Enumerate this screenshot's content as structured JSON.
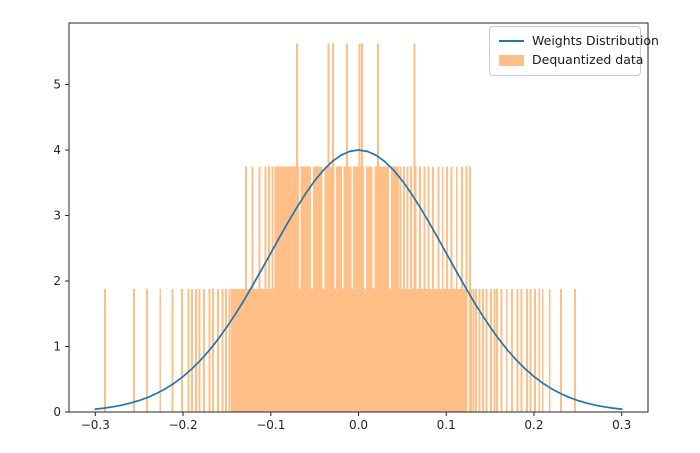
{
  "figure": {
    "background": "#ffffff"
  },
  "legend": {
    "entries": [
      {
        "type": "line",
        "label": "Weights Distribution",
        "color": "#1f77b4"
      },
      {
        "type": "patch",
        "label": "Dequantized data",
        "color": "#ffbf86"
      }
    ]
  },
  "chart_data": {
    "type": "histogram+line",
    "title": "",
    "xlabel": "",
    "ylabel": "",
    "grid": false,
    "legend_position": "upper right",
    "xlim": [
      -0.33,
      0.33
    ],
    "ylim": [
      0,
      5.94
    ],
    "x_ticks": {
      "values": [
        -0.3,
        -0.2,
        -0.1,
        0.0,
        0.1,
        0.2,
        0.3
      ],
      "labels": [
        "−0.3",
        "−0.2",
        "−0.1",
        "0.0",
        "0.1",
        "0.2",
        "0.3"
      ]
    },
    "y_ticks": {
      "values": [
        0,
        1,
        2,
        3,
        4,
        5
      ],
      "labels": [
        "0",
        "1",
        "2",
        "3",
        "4",
        "5"
      ]
    },
    "series": [
      {
        "name": "Weights Distribution",
        "type": "line",
        "color": "#1f77b4",
        "line_width": 1.7,
        "points": [
          [
            -0.3,
            0.044
          ],
          [
            -0.29,
            0.06
          ],
          [
            -0.28,
            0.079
          ],
          [
            -0.27,
            0.104
          ],
          [
            -0.26,
            0.136
          ],
          [
            -0.25,
            0.176
          ],
          [
            -0.24,
            0.225
          ],
          [
            -0.23,
            0.284
          ],
          [
            -0.22,
            0.356
          ],
          [
            -0.21,
            0.442
          ],
          [
            -0.2,
            0.541
          ],
          [
            -0.19,
            0.658
          ],
          [
            -0.18,
            0.792
          ],
          [
            -0.17,
            0.943
          ],
          [
            -0.16,
            1.112
          ],
          [
            -0.15,
            1.299
          ],
          [
            -0.14,
            1.501
          ],
          [
            -0.13,
            1.718
          ],
          [
            -0.12,
            1.948
          ],
          [
            -0.11,
            2.185
          ],
          [
            -0.1,
            2.426
          ],
          [
            -0.09,
            2.668
          ],
          [
            -0.08,
            2.904
          ],
          [
            -0.07,
            3.131
          ],
          [
            -0.06,
            3.341
          ],
          [
            -0.05,
            3.53
          ],
          [
            -0.04,
            3.692
          ],
          [
            -0.03,
            3.824
          ],
          [
            -0.02,
            3.921
          ],
          [
            -0.01,
            3.98
          ],
          [
            0.0,
            4.0
          ],
          [
            0.01,
            3.98
          ],
          [
            0.02,
            3.921
          ],
          [
            0.03,
            3.824
          ],
          [
            0.04,
            3.692
          ],
          [
            0.05,
            3.53
          ],
          [
            0.06,
            3.341
          ],
          [
            0.07,
            3.131
          ],
          [
            0.08,
            2.904
          ],
          [
            0.09,
            2.668
          ],
          [
            0.1,
            2.426
          ],
          [
            0.11,
            2.185
          ],
          [
            0.12,
            1.948
          ],
          [
            0.13,
            1.718
          ],
          [
            0.14,
            1.501
          ],
          [
            0.15,
            1.299
          ],
          [
            0.16,
            1.112
          ],
          [
            0.17,
            0.943
          ],
          [
            0.18,
            0.792
          ],
          [
            0.19,
            0.658
          ],
          [
            0.2,
            0.541
          ],
          [
            0.21,
            0.442
          ],
          [
            0.22,
            0.356
          ],
          [
            0.23,
            0.284
          ],
          [
            0.24,
            0.225
          ],
          [
            0.25,
            0.176
          ],
          [
            0.26,
            0.136
          ],
          [
            0.27,
            0.104
          ],
          [
            0.28,
            0.079
          ],
          [
            0.29,
            0.06
          ],
          [
            0.3,
            0.044
          ]
        ]
      },
      {
        "name": "Dequantized data",
        "type": "histogram",
        "color": "#ffbf86",
        "levels": [
          1.875,
          3.75,
          5.625
        ],
        "bar_width": 0.0022,
        "blocks": [
          [
            -0.1455,
            0.124,
            1.875
          ],
          [
            -0.096,
            0.046,
            3.75
          ]
        ],
        "bars": [
          [
            -0.289,
            1.875
          ],
          [
            -0.256,
            1.875
          ],
          [
            -0.241,
            1.875
          ],
          [
            -0.226,
            1.875
          ],
          [
            -0.212,
            1.875
          ],
          [
            -0.201,
            1.875
          ],
          [
            -0.194,
            1.875
          ],
          [
            -0.19,
            1.875
          ],
          [
            -0.185,
            1.875
          ],
          [
            -0.181,
            1.875
          ],
          [
            -0.176,
            1.875
          ],
          [
            -0.17,
            1.875
          ],
          [
            -0.166,
            1.875
          ],
          [
            -0.16,
            1.875
          ],
          [
            -0.155,
            1.875
          ],
          [
            -0.151,
            1.875
          ],
          [
            -0.147,
            1.875
          ],
          [
            0.128,
            1.875
          ],
          [
            0.131,
            1.875
          ],
          [
            0.134,
            1.875
          ],
          [
            0.138,
            1.875
          ],
          [
            0.142,
            1.875
          ],
          [
            0.146,
            1.875
          ],
          [
            0.151,
            1.875
          ],
          [
            0.155,
            1.875
          ],
          [
            0.158,
            1.875
          ],
          [
            0.163,
            1.875
          ],
          [
            0.169,
            1.875
          ],
          [
            0.175,
            1.875
          ],
          [
            0.181,
            1.875
          ],
          [
            0.186,
            1.875
          ],
          [
            0.192,
            1.875
          ],
          [
            0.196,
            1.875
          ],
          [
            0.201,
            1.875
          ],
          [
            0.206,
            1.875
          ],
          [
            0.21,
            1.875
          ],
          [
            0.218,
            1.875
          ],
          [
            0.231,
            1.875
          ],
          [
            0.247,
            1.875
          ],
          [
            -0.128,
            3.75
          ],
          [
            -0.121,
            3.75
          ],
          [
            -0.113,
            3.75
          ],
          [
            -0.106,
            3.75
          ],
          [
            -0.102,
            3.75
          ],
          [
            -0.098,
            3.75
          ],
          [
            0.048,
            3.75
          ],
          [
            0.052,
            3.75
          ],
          [
            0.056,
            3.75
          ],
          [
            0.06,
            3.75
          ],
          [
            0.065,
            3.75
          ],
          [
            0.07,
            3.75
          ],
          [
            0.075,
            3.75
          ],
          [
            0.08,
            3.75
          ],
          [
            0.085,
            3.75
          ],
          [
            0.091,
            3.75
          ],
          [
            0.096,
            3.75
          ],
          [
            0.101,
            3.75
          ],
          [
            0.106,
            3.75
          ],
          [
            0.112,
            3.75
          ],
          [
            0.118,
            3.75
          ],
          [
            0.123,
            3.75
          ],
          [
            0.127,
            3.75
          ],
          [
            -0.07,
            5.625
          ],
          [
            -0.034,
            5.625
          ],
          [
            -0.029,
            5.625
          ],
          [
            -0.013,
            5.625
          ],
          [
            0.001,
            5.625
          ],
          [
            0.004,
            5.625
          ],
          [
            0.022,
            5.625
          ],
          [
            0.064,
            5.625
          ]
        ],
        "gaps": {
          "width": 0.002,
          "y_range": [
            1.875,
            3.75
          ],
          "x": [
            -0.067,
            -0.053,
            -0.04,
            -0.0265,
            -0.018,
            -0.007,
            0.0075,
            0.017,
            0.036
          ]
        }
      }
    ]
  }
}
